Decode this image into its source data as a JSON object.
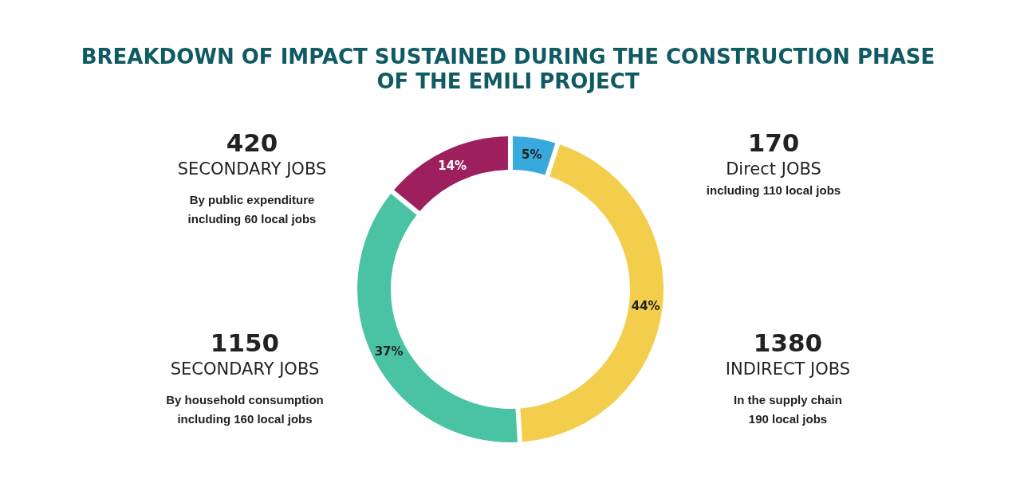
{
  "chart_data": {
    "type": "donut",
    "title": "BREAKDOWN OF IMPACT SUSTAINED DURING THE CONSTRUCTION PHASE\nOF THE EMILI PROJECT",
    "categories": [
      null,
      null,
      null,
      null
    ],
    "values": [
      5,
      44,
      37,
      14
    ],
    "colors": [
      "#38a9dc",
      "#f3cd4c",
      "#4ac2a4",
      "#9e1f5e"
    ],
    "value_labels": [
      "5%",
      "44%",
      "37%",
      "14%"
    ],
    "annotations": [
      "170",
      "Direct JOBS",
      "including 110 local jobs",
      "1380",
      "INDIRECT JOBS",
      "In the supply chain\n190 local jobs",
      "1150",
      "SECONDARY JOBS",
      "By household consumption\nincluding 160 local jobs",
      "420",
      "SECONDARY JOBS",
      "By public expenditure\nincluding 60 local jobs"
    ]
  }
}
